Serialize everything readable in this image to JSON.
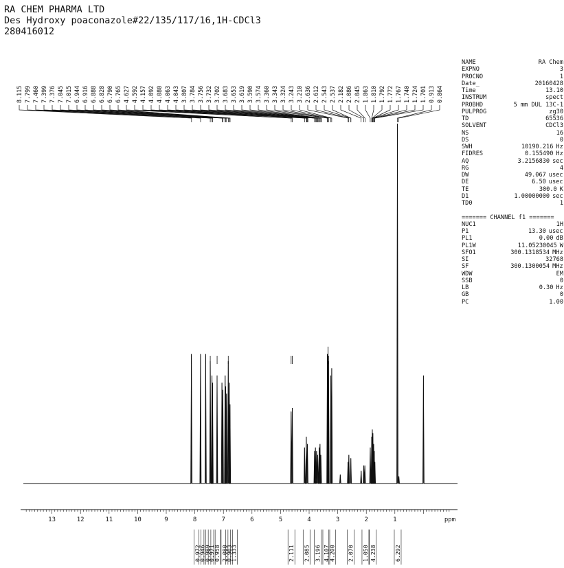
{
  "header": {
    "line1": "RA CHEM PHARMA LTD",
    "line2": "Des Hydroxy poaconazole#22/135/117/16,1H-CDCl3",
    "line3": "280416012"
  },
  "params": [
    {
      "key": "NAME",
      "value": "RA Chem",
      "unit": ""
    },
    {
      "key": "EXPNO",
      "value": "3",
      "unit": ""
    },
    {
      "key": "PROCNO",
      "value": "1",
      "unit": ""
    },
    {
      "key": "Date_",
      "value": "20160428",
      "unit": ""
    },
    {
      "key": "Time",
      "value": "13.10",
      "unit": ""
    },
    {
      "key": "INSTRUM",
      "value": "spect",
      "unit": ""
    },
    {
      "key": "PROBHD",
      "value": "5 mm DUL 13C-1",
      "unit": ""
    },
    {
      "key": "PULPROG",
      "value": "zg30",
      "unit": ""
    },
    {
      "key": "TD",
      "value": "65536",
      "unit": ""
    },
    {
      "key": "SOLVENT",
      "value": "CDCl3",
      "unit": ""
    },
    {
      "key": "NS",
      "value": "16",
      "unit": ""
    },
    {
      "key": "DS",
      "value": "0",
      "unit": ""
    },
    {
      "key": "SWH",
      "value": "10190.216",
      "unit": "Hz"
    },
    {
      "key": "FIDRES",
      "value": "0.155490",
      "unit": "Hz"
    },
    {
      "key": "AQ",
      "value": "3.2156830",
      "unit": "sec"
    },
    {
      "key": "RG",
      "value": "4",
      "unit": ""
    },
    {
      "key": "DW",
      "value": "49.067",
      "unit": "usec"
    },
    {
      "key": "DE",
      "value": "6.50",
      "unit": "usec"
    },
    {
      "key": "TE",
      "value": "300.0",
      "unit": "K"
    },
    {
      "key": "D1",
      "value": "1.00000000",
      "unit": "sec"
    },
    {
      "key": "TD0",
      "value": "1",
      "unit": ""
    }
  ],
  "channel_header": "======= CHANNEL f1 =======",
  "channel_params": [
    {
      "key": "NUC1",
      "value": "1H",
      "unit": ""
    },
    {
      "key": "P1",
      "value": "13.30",
      "unit": "usec"
    },
    {
      "key": "PL1",
      "value": "0.00",
      "unit": "dB"
    },
    {
      "key": "PL1W",
      "value": "11.05230045",
      "unit": "W"
    },
    {
      "key": "SFO1",
      "value": "300.1318534",
      "unit": "MHz"
    },
    {
      "key": "SI",
      "value": "32768",
      "unit": ""
    },
    {
      "key": "SF",
      "value": "300.1300054",
      "unit": "MHz"
    },
    {
      "key": "WDW",
      "value": "EM",
      "unit": ""
    },
    {
      "key": "SSB",
      "value": "0",
      "unit": ""
    },
    {
      "key": "LB",
      "value": "0.30",
      "unit": "Hz"
    },
    {
      "key": "GB",
      "value": "0",
      "unit": ""
    },
    {
      "key": "PC",
      "value": "1.00",
      "unit": ""
    }
  ],
  "chart_data": {
    "type": "line",
    "xlabel": "ppm",
    "x_reversed": true,
    "xlim": [
      14.0,
      -1.0
    ],
    "x_ticks": [
      "13",
      "12",
      "11",
      "10",
      "9",
      "8",
      "7",
      "6",
      "5",
      "4",
      "3",
      "2",
      "1"
    ],
    "peak_labels": [
      "8.115",
      "7.799",
      "7.460",
      "7.399",
      "7.376",
      "7.045",
      "7.015",
      "6.944",
      "6.916",
      "6.888",
      "6.828",
      "6.790",
      "6.765",
      "4.627",
      "4.592",
      "4.157",
      "4.092",
      "4.080",
      "4.063",
      "4.043",
      "3.807",
      "3.784",
      "3.756",
      "3.732",
      "3.702",
      "3.683",
      "3.653",
      "3.619",
      "3.590",
      "3.574",
      "3.360",
      "3.343",
      "3.324",
      "3.243",
      "3.210",
      "2.636",
      "2.612",
      "2.543",
      "2.537",
      "2.182",
      "2.086",
      "2.045",
      "1.863",
      "1.810",
      "1.792",
      "1.772",
      "1.767",
      "1.740",
      "1.724",
      "1.701",
      "0.913",
      "0.864"
    ],
    "peaks": [
      {
        "ppm": 8.12,
        "height": 0.36
      },
      {
        "ppm": 7.8,
        "height": 0.36
      },
      {
        "ppm": 7.62,
        "height": 0.36
      },
      {
        "ppm": 7.46,
        "height": 0.34
      },
      {
        "ppm": 7.4,
        "height": 0.3
      },
      {
        "ppm": 7.38,
        "height": 0.28
      },
      {
        "ppm": 7.22,
        "height": 0.3
      },
      {
        "ppm": 7.05,
        "height": 0.28
      },
      {
        "ppm": 7.02,
        "height": 0.26
      },
      {
        "ppm": 6.94,
        "height": 0.3
      },
      {
        "ppm": 6.92,
        "height": 0.27
      },
      {
        "ppm": 6.89,
        "height": 0.25
      },
      {
        "ppm": 6.83,
        "height": 0.34
      },
      {
        "ppm": 6.79,
        "height": 0.28
      },
      {
        "ppm": 6.77,
        "height": 0.22
      },
      {
        "ppm": 4.63,
        "height": 0.2
      },
      {
        "ppm": 4.59,
        "height": 0.21
      },
      {
        "ppm": 4.16,
        "height": 0.1
      },
      {
        "ppm": 4.1,
        "height": 0.13
      },
      {
        "ppm": 4.06,
        "height": 0.11
      },
      {
        "ppm": 3.81,
        "height": 0.09
      },
      {
        "ppm": 3.78,
        "height": 0.1
      },
      {
        "ppm": 3.74,
        "height": 0.09
      },
      {
        "ppm": 3.7,
        "height": 0.08
      },
      {
        "ppm": 3.65,
        "height": 0.1
      },
      {
        "ppm": 3.62,
        "height": 0.11
      },
      {
        "ppm": 3.59,
        "height": 0.08
      },
      {
        "ppm": 3.36,
        "height": 0.36
      },
      {
        "ppm": 3.34,
        "height": 0.38
      },
      {
        "ppm": 3.32,
        "height": 0.34
      },
      {
        "ppm": 3.24,
        "height": 0.3
      },
      {
        "ppm": 3.21,
        "height": 0.32
      },
      {
        "ppm": 2.91,
        "height": 0.025
      },
      {
        "ppm": 2.64,
        "height": 0.06
      },
      {
        "ppm": 2.61,
        "height": 0.08
      },
      {
        "ppm": 2.54,
        "height": 0.07
      },
      {
        "ppm": 2.18,
        "height": 0.035
      },
      {
        "ppm": 2.09,
        "height": 0.05
      },
      {
        "ppm": 2.05,
        "height": 0.05
      },
      {
        "ppm": 1.86,
        "height": 0.1
      },
      {
        "ppm": 1.81,
        "height": 0.13
      },
      {
        "ppm": 1.79,
        "height": 0.15
      },
      {
        "ppm": 1.77,
        "height": 0.14
      },
      {
        "ppm": 1.74,
        "height": 0.11
      },
      {
        "ppm": 1.72,
        "height": 0.09
      },
      {
        "ppm": 1.7,
        "height": 0.06
      },
      {
        "ppm": 0.91,
        "height": 1.0
      },
      {
        "ppm": 0.86,
        "height": 0.02
      },
      {
        "ppm": 0.0,
        "height": 0.3
      }
    ],
    "integrals": [
      {
        "ppm": 7.91,
        "label": "0.972"
      },
      {
        "ppm": 7.74,
        "label": "0.946"
      },
      {
        "ppm": 7.56,
        "label": "0.989"
      },
      {
        "ppm": 7.41,
        "label": "0.971"
      },
      {
        "ppm": 7.22,
        "label": "0.958"
      },
      {
        "ppm": 6.96,
        "label": "2.080"
      },
      {
        "ppm": 6.8,
        "label": "0.963"
      },
      {
        "ppm": 6.63,
        "label": "1.333"
      },
      {
        "ppm": 4.62,
        "label": "2.111"
      },
      {
        "ppm": 4.09,
        "label": "2.085"
      },
      {
        "ppm": 3.7,
        "label": "3.196"
      },
      {
        "ppm": 3.4,
        "label": "4.107"
      },
      {
        "ppm": 3.2,
        "label": "4.200"
      },
      {
        "ppm": 2.55,
        "label": "2.070"
      },
      {
        "ppm": 2.03,
        "label": "1.050"
      },
      {
        "ppm": 1.77,
        "label": "4.238"
      },
      {
        "ppm": 0.9,
        "label": "6.292"
      }
    ]
  }
}
